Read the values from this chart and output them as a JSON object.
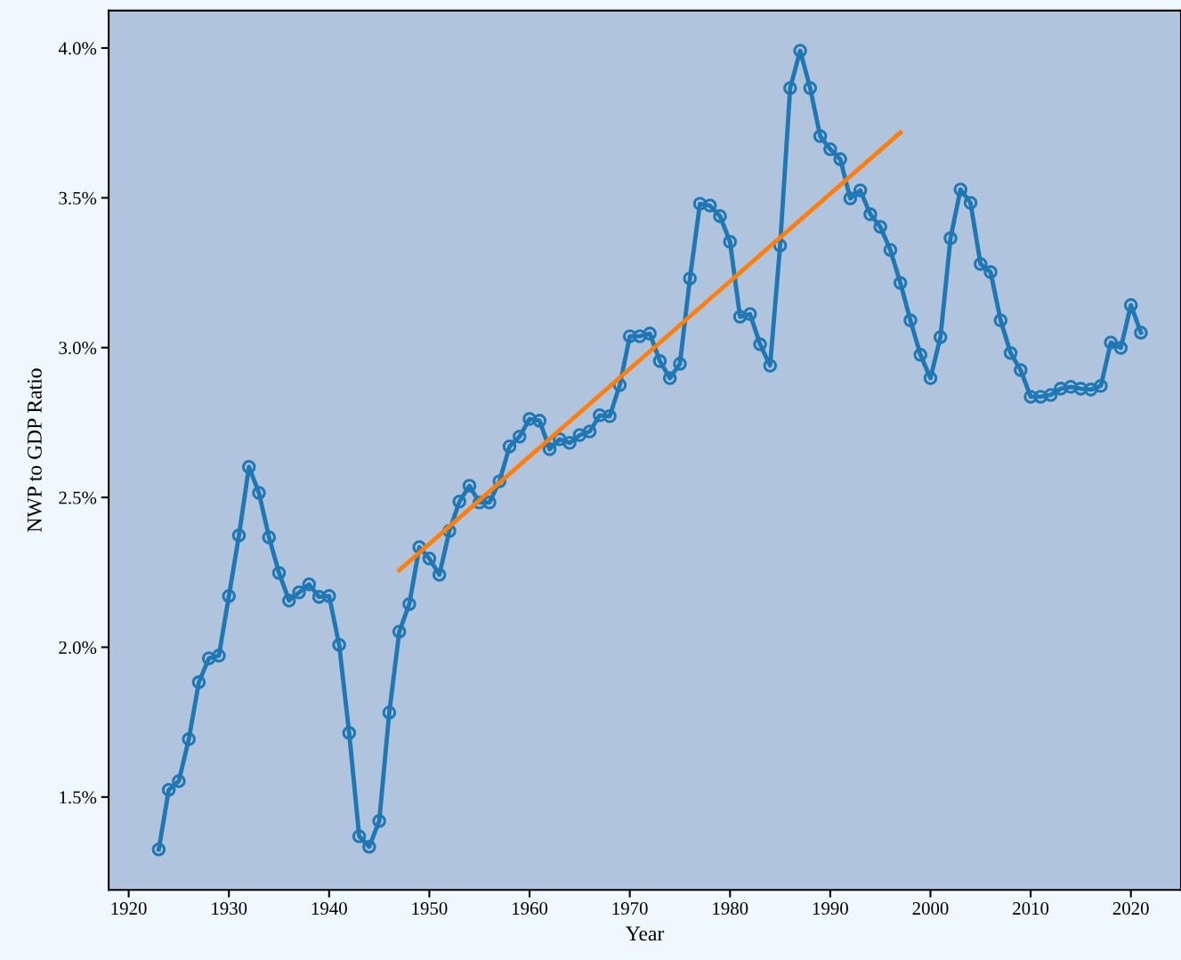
{
  "chart_data": {
    "type": "line",
    "xlabel": "Year",
    "ylabel": "NWP to GDP Ratio",
    "xlim": [
      1918,
      2025
    ],
    "xticks": [
      1920,
      1930,
      1940,
      1950,
      1960,
      1970,
      1980,
      1990,
      2000,
      2010,
      2020
    ],
    "ylim": [
      1.19,
      4.125
    ],
    "yticks": [
      {
        "value": 1.5,
        "label": "1.5%"
      },
      {
        "value": 2.0,
        "label": "2.0%"
      },
      {
        "value": 2.5,
        "label": "2.5%"
      },
      {
        "value": 3.0,
        "label": "3.0%"
      },
      {
        "value": 3.5,
        "label": "3.5%"
      },
      {
        "value": 4.0,
        "label": "4.0%"
      }
    ],
    "grid": false,
    "legend": false,
    "series": [
      {
        "color": "#1f77b4",
        "marker": "circle",
        "x": [
          1923,
          1924,
          1925,
          1926,
          1927,
          1928,
          1929,
          1930,
          1931,
          1932,
          1933,
          1934,
          1935,
          1936,
          1937,
          1938,
          1939,
          1940,
          1941,
          1942,
          1943,
          1944,
          1945,
          1946,
          1947,
          1948,
          1949,
          1950,
          1951,
          1952,
          1953,
          1954,
          1955,
          1956,
          1957,
          1958,
          1959,
          1960,
          1961,
          1962,
          1963,
          1964,
          1965,
          1966,
          1967,
          1968,
          1969,
          1970,
          1971,
          1972,
          1973,
          1974,
          1975,
          1976,
          1977,
          1978,
          1979,
          1980,
          1981,
          1982,
          1983,
          1984,
          1985,
          1986,
          1987,
          1988,
          1989,
          1990,
          1991,
          1992,
          1993,
          1994,
          1995,
          1996,
          1997,
          1998,
          1999,
          2000,
          2001,
          2002,
          2003,
          2004,
          2005,
          2006,
          2007,
          2008,
          2009,
          2010,
          2011,
          2012,
          2013,
          2014,
          2015,
          2016,
          2017,
          2018,
          2019,
          2020,
          2021
        ],
        "values": [
          1.325,
          1.524,
          1.553,
          1.693,
          1.883,
          1.963,
          1.972,
          2.171,
          2.373,
          2.602,
          2.515,
          2.367,
          2.248,
          2.156,
          2.183,
          2.21,
          2.168,
          2.171,
          2.008,
          1.714,
          1.369,
          1.334,
          1.42,
          1.782,
          2.052,
          2.144,
          2.334,
          2.296,
          2.242,
          2.388,
          2.486,
          2.539,
          2.483,
          2.483,
          2.554,
          2.67,
          2.703,
          2.762,
          2.756,
          2.661,
          2.694,
          2.682,
          2.708,
          2.72,
          2.774,
          2.771,
          2.875,
          3.038,
          3.038,
          3.047,
          2.955,
          2.898,
          2.946,
          3.231,
          3.48,
          3.474,
          3.439,
          3.353,
          3.103,
          3.112,
          3.011,
          2.94,
          3.341,
          3.866,
          3.991,
          3.866,
          3.706,
          3.662,
          3.629,
          3.498,
          3.525,
          3.445,
          3.403,
          3.326,
          3.216,
          3.091,
          2.976,
          2.898,
          3.035,
          3.365,
          3.528,
          3.483,
          3.279,
          3.252,
          3.091,
          2.982,
          2.925,
          2.836,
          2.836,
          2.842,
          2.863,
          2.869,
          2.863,
          2.86,
          2.872,
          3.017,
          2.999,
          3.142,
          3.05
        ]
      },
      {
        "color": "#ff7f0e",
        "marker": "none",
        "x": [
          1947,
          1997
        ],
        "values": [
          2.257,
          3.718
        ]
      }
    ]
  }
}
